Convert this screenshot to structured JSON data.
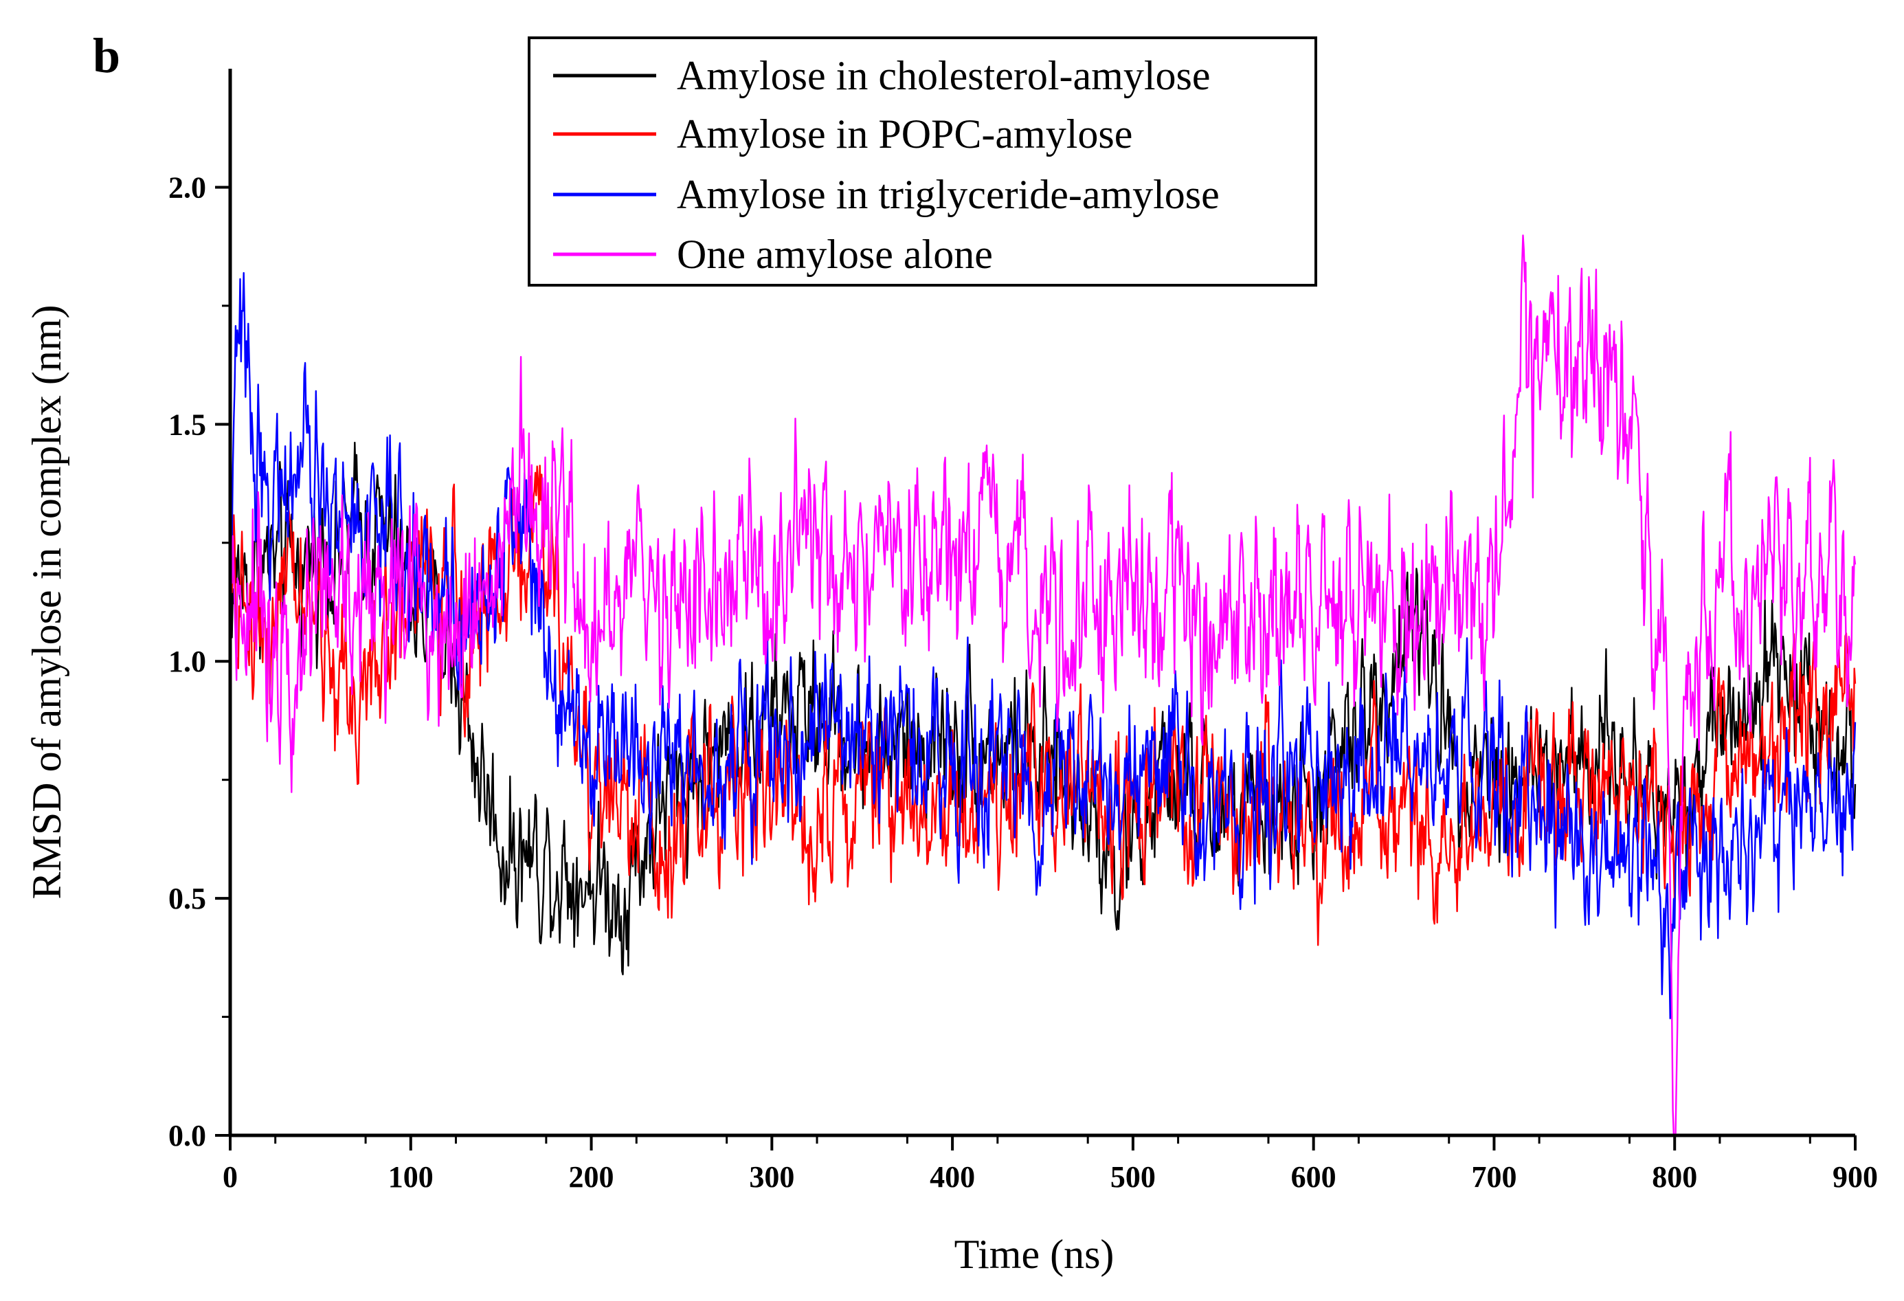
{
  "panel_label": "b",
  "chart_data": {
    "type": "line",
    "title": "",
    "xlabel": "Time (ns)",
    "ylabel": "RMSD of amylose in complex (nm)",
    "xlim": [
      0,
      900
    ],
    "ylim": [
      0.0,
      2.25
    ],
    "x_ticks": [
      "0",
      "100",
      "200",
      "300",
      "400",
      "500",
      "600",
      "700",
      "800",
      "900"
    ],
    "y_ticks": [
      "0.0",
      "0.5",
      "1.0",
      "1.5",
      "2.0"
    ],
    "grid": false,
    "legend_position": "top-center",
    "series": [
      {
        "name": "Amylose in cholesterol-amylose",
        "color": "#000000",
        "x": [
          0,
          20,
          40,
          60,
          80,
          100,
          120,
          140,
          150,
          160,
          180,
          200,
          215,
          240,
          280,
          320,
          360,
          400,
          440,
          480,
          490,
          520,
          560,
          600,
          640,
          655,
          680,
          720,
          760,
          800,
          820,
          850,
          880,
          900
        ],
        "y": [
          1.15,
          1.2,
          1.2,
          1.25,
          1.3,
          1.15,
          1.05,
          0.75,
          0.62,
          0.6,
          0.58,
          0.55,
          0.5,
          0.7,
          0.85,
          0.9,
          0.8,
          0.85,
          0.8,
          0.7,
          0.55,
          0.75,
          0.65,
          0.7,
          0.95,
          1.1,
          0.8,
          0.75,
          0.8,
          0.7,
          0.85,
          1.0,
          0.9,
          0.8
        ]
      },
      {
        "name": "Amylose in POPC-amylose",
        "color": "#ff0000",
        "x": [
          0,
          20,
          40,
          60,
          80,
          100,
          120,
          140,
          170,
          200,
          240,
          280,
          320,
          360,
          400,
          440,
          480,
          520,
          560,
          600,
          640,
          680,
          720,
          760,
          800,
          840,
          870,
          900
        ],
        "y": [
          1.1,
          1.1,
          1.15,
          0.95,
          0.95,
          1.2,
          1.1,
          1.1,
          1.3,
          0.75,
          0.65,
          0.75,
          0.7,
          0.75,
          0.7,
          0.75,
          0.7,
          0.7,
          0.7,
          0.65,
          0.65,
          0.6,
          0.7,
          0.75,
          0.65,
          0.8,
          0.9,
          0.95
        ]
      },
      {
        "name": "Amylose in triglyceride-amylose",
        "color": "#0000ff",
        "x": [
          0,
          5,
          20,
          40,
          60,
          80,
          100,
          120,
          140,
          160,
          180,
          200,
          240,
          280,
          320,
          360,
          400,
          440,
          480,
          520,
          560,
          600,
          640,
          680,
          720,
          760,
          800,
          820,
          860,
          900
        ],
        "y": [
          1.3,
          1.7,
          1.35,
          1.4,
          1.3,
          1.3,
          1.2,
          1.15,
          1.1,
          1.35,
          1.0,
          0.85,
          0.8,
          0.8,
          0.85,
          0.85,
          0.8,
          0.75,
          0.75,
          0.75,
          0.7,
          0.75,
          0.75,
          0.8,
          0.65,
          0.6,
          0.5,
          0.6,
          0.65,
          0.75
        ]
      },
      {
        "name": "One amylose alone",
        "color": "#ff00ff",
        "x": [
          0,
          20,
          40,
          60,
          80,
          100,
          120,
          140,
          160,
          180,
          200,
          240,
          280,
          320,
          360,
          400,
          440,
          480,
          520,
          560,
          600,
          640,
          680,
          700,
          715,
          730,
          760,
          780,
          795,
          800,
          805,
          820,
          860,
          900
        ],
        "y": [
          1.2,
          1.1,
          1.1,
          1.15,
          1.15,
          1.15,
          1.1,
          1.15,
          1.35,
          1.25,
          1.1,
          1.15,
          1.15,
          1.2,
          1.15,
          1.2,
          1.15,
          1.15,
          1.1,
          1.1,
          1.1,
          1.1,
          1.15,
          1.1,
          1.65,
          1.65,
          1.6,
          1.4,
          1.05,
          0.0,
          0.9,
          1.05,
          1.2,
          1.15
        ]
      }
    ]
  }
}
